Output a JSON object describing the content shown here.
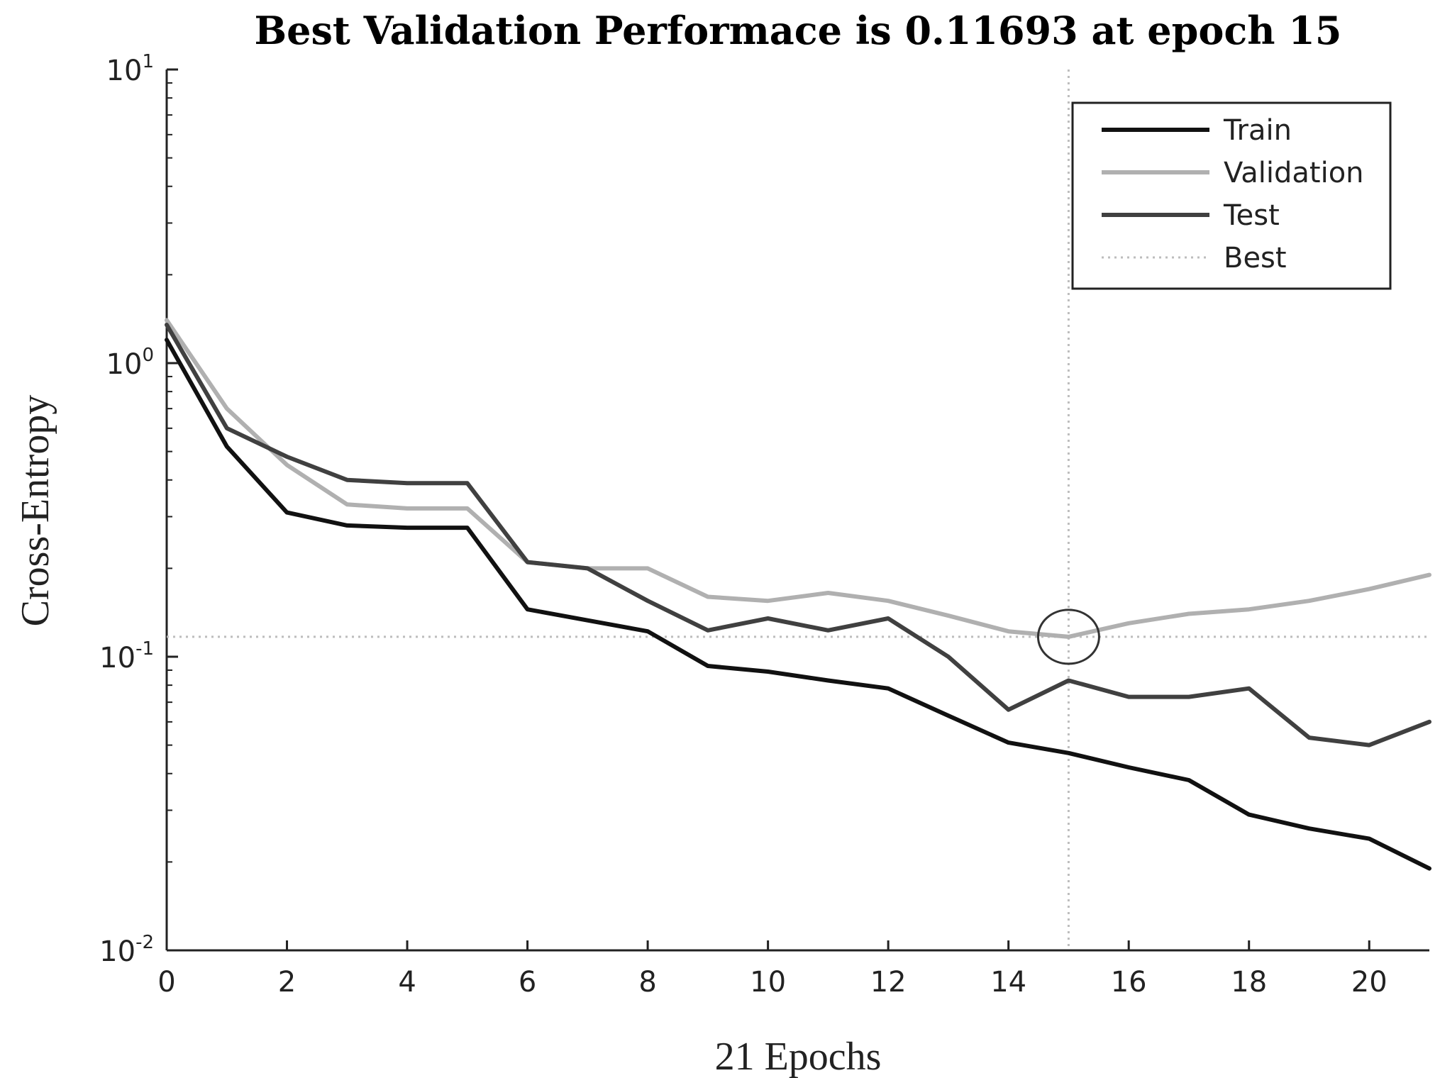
{
  "chart_data": {
    "type": "line",
    "title": "Best Validation Performace is 0.11693 at epoch 15",
    "xlabel": "21 Epochs",
    "ylabel": "Cross-Entropy",
    "xlim": [
      0,
      21
    ],
    "ylim": [
      0.01,
      10
    ],
    "yscale": "log",
    "x_ticks": [
      0,
      2,
      4,
      6,
      8,
      10,
      12,
      14,
      16,
      18,
      20
    ],
    "y_ticks": [
      {
        "base": "10",
        "exp": "1",
        "value": 10
      },
      {
        "base": "10",
        "exp": "0",
        "value": 1
      },
      {
        "base": "10",
        "exp": "-1",
        "value": 0.1
      },
      {
        "base": "10",
        "exp": "-2",
        "value": 0.01
      }
    ],
    "x": [
      0,
      1,
      2,
      3,
      4,
      5,
      6,
      7,
      8,
      9,
      10,
      11,
      12,
      13,
      14,
      15,
      16,
      17,
      18,
      19,
      20,
      21
    ],
    "series": [
      {
        "name": "Train",
        "color": "#111111",
        "values": [
          1.2,
          0.52,
          0.31,
          0.28,
          0.275,
          0.275,
          0.145,
          0.133,
          0.122,
          0.093,
          0.089,
          0.083,
          0.078,
          0.063,
          0.051,
          0.047,
          0.042,
          0.038,
          0.029,
          0.026,
          0.024,
          0.019
        ]
      },
      {
        "name": "Validation",
        "color": "#b0b0b0",
        "values": [
          1.4,
          0.7,
          0.45,
          0.33,
          0.32,
          0.32,
          0.21,
          0.2,
          0.2,
          0.16,
          0.155,
          0.165,
          0.155,
          0.138,
          0.122,
          0.11693,
          0.13,
          0.14,
          0.145,
          0.155,
          0.17,
          0.19
        ]
      },
      {
        "name": "Test",
        "color": "#404040",
        "values": [
          1.35,
          0.6,
          0.48,
          0.4,
          0.39,
          0.39,
          0.21,
          0.2,
          0.155,
          0.123,
          0.135,
          0.123,
          0.135,
          0.1,
          0.066,
          0.083,
          0.073,
          0.073,
          0.078,
          0.053,
          0.05,
          0.06
        ]
      }
    ],
    "best": {
      "name": "Best",
      "epoch": 15,
      "value": 0.11693,
      "color": "#bdbdbd"
    },
    "legend": {
      "position": "top-right",
      "entries": [
        "Train",
        "Validation",
        "Test",
        "Best"
      ]
    },
    "grid": false
  }
}
